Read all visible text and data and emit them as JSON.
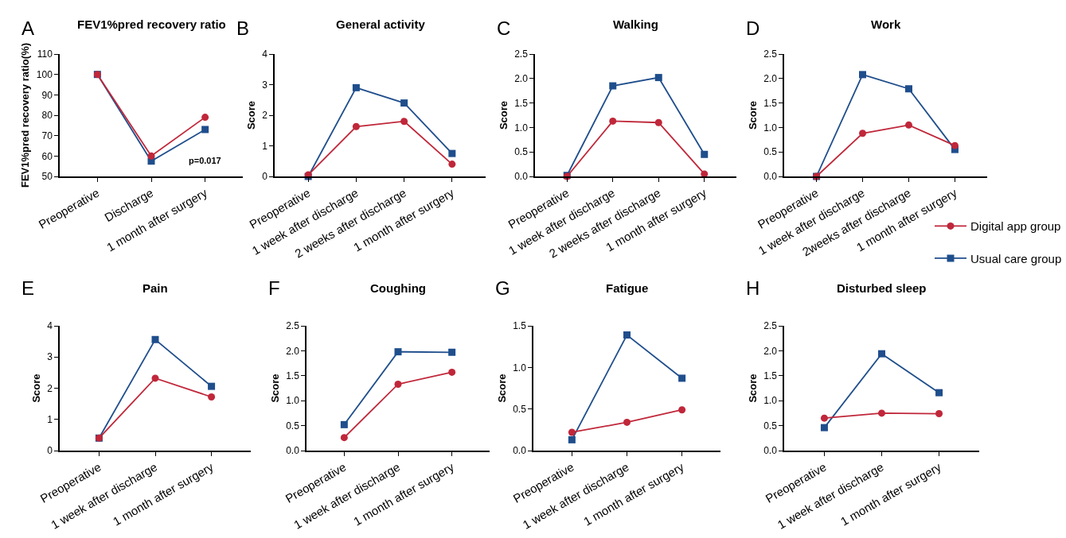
{
  "chart_data": [
    {
      "type": "line",
      "title": "FEV1%pred recovery ratio",
      "ylabel": "FEV1%pred recovery ratio(%)",
      "annotations": [
        "A",
        "p=0.017"
      ],
      "categories": [
        "Preoperative",
        "Discharge",
        "1 month after surgery"
      ],
      "ylim": [
        50,
        110
      ],
      "yticks": [
        50,
        60,
        70,
        80,
        90,
        100,
        110
      ],
      "legend": "right",
      "series": [
        {
          "name": "Digital app group",
          "color": "#c0273a",
          "marker": "circle",
          "values": [
            100,
            60,
            79
          ]
        },
        {
          "name": "Usual care group",
          "color": "#1f4e8c",
          "marker": "square",
          "values": [
            100,
            57.5,
            73
          ]
        }
      ]
    },
    {
      "type": "line",
      "title": "General activity",
      "ylabel": "Score",
      "annotations": [
        "B"
      ],
      "categories": [
        "Preoperative",
        "1 week after discharge",
        "2 weeks after discharge",
        "1 month after surgery"
      ],
      "ylim": [
        0,
        4
      ],
      "yticks": [
        0,
        1,
        2,
        3,
        4
      ],
      "series": [
        {
          "color": "#c0273a",
          "marker": "circle",
          "values": [
            0.05,
            1.63,
            1.8,
            0.4
          ]
        },
        {
          "color": "#1f4e8c",
          "marker": "square",
          "values": [
            0,
            2.9,
            2.4,
            0.75
          ]
        }
      ]
    },
    {
      "type": "line",
      "title": "Walking",
      "ylabel": "Score",
      "annotations": [
        "C"
      ],
      "categories": [
        "Preoperative",
        "1 week after discharge",
        "2 weeks after discharge",
        "1 month after surgery"
      ],
      "ylim": [
        0,
        2.5
      ],
      "yticks": [
        {
          "value": 0,
          "label": "0.0"
        },
        {
          "value": 0.5,
          "label": "0.5"
        },
        {
          "value": 1,
          "label": "1.0"
        },
        {
          "value": 1.5,
          "label": "1.5"
        },
        {
          "value": 2,
          "label": "2.0"
        },
        {
          "value": 2.5,
          "label": "2.5"
        }
      ],
      "series": [
        {
          "color": "#c0273a",
          "marker": "circle",
          "values": [
            0,
            1.13,
            1.1,
            0.05
          ]
        },
        {
          "color": "#1f4e8c",
          "marker": "square",
          "values": [
            0.02,
            1.85,
            2.02,
            0.45
          ]
        }
      ]
    },
    {
      "type": "line",
      "title": "Work",
      "ylabel": "Score",
      "annotations": [
        "D"
      ],
      "categories": [
        "Preoperative",
        "1 week after discharge",
        "2weeks after discharge",
        "1 month after surgery"
      ],
      "ylim": [
        0,
        2.5
      ],
      "yticks": [
        {
          "value": 0,
          "label": "0.0"
        },
        {
          "value": 0.5,
          "label": "0.5"
        },
        {
          "value": 1,
          "label": "1.0"
        },
        {
          "value": 1.5,
          "label": "1.5"
        },
        {
          "value": 2,
          "label": "2.0"
        },
        {
          "value": 2.5,
          "label": "2.5"
        }
      ],
      "series": [
        {
          "color": "#c0273a",
          "marker": "circle",
          "values": [
            0,
            0.88,
            1.05,
            0.63
          ]
        },
        {
          "color": "#1f4e8c",
          "marker": "square",
          "values": [
            0,
            2.08,
            1.79,
            0.55
          ]
        }
      ]
    },
    {
      "type": "line",
      "title": "Pain",
      "ylabel": "Score",
      "annotations": [
        "E"
      ],
      "categories": [
        "Preoperative",
        "1 week after discharge",
        "1 month after surgery"
      ],
      "ylim": [
        0,
        4
      ],
      "yticks": [
        0,
        1,
        2,
        3,
        4
      ],
      "series": [
        {
          "color": "#c0273a",
          "marker": "circle",
          "values": [
            0.4,
            2.32,
            1.72
          ]
        },
        {
          "color": "#1f4e8c",
          "marker": "square",
          "values": [
            0.4,
            3.56,
            2.06
          ]
        }
      ]
    },
    {
      "type": "line",
      "title": "Coughing",
      "ylabel": "Score",
      "annotations": [
        "F"
      ],
      "categories": [
        "Preoperative",
        "1 week after discharge",
        "1 month after surgery"
      ],
      "ylim": [
        0,
        2.5
      ],
      "yticks": [
        {
          "value": 0,
          "label": "0.0"
        },
        {
          "value": 0.5,
          "label": "0.5"
        },
        {
          "value": 1,
          "label": "1.0"
        },
        {
          "value": 1.5,
          "label": "1.5"
        },
        {
          "value": 2,
          "label": "2.0"
        },
        {
          "value": 2.5,
          "label": "2.5"
        }
      ],
      "series": [
        {
          "color": "#c0273a",
          "marker": "circle",
          "values": [
            0.26,
            1.33,
            1.57
          ]
        },
        {
          "color": "#1f4e8c",
          "marker": "square",
          "values": [
            0.52,
            1.98,
            1.97
          ]
        }
      ]
    },
    {
      "type": "line",
      "title": "Fatigue",
      "ylabel": "Score",
      "annotations": [
        "G"
      ],
      "categories": [
        "Preoperative",
        "1 week after discharge",
        "1 month after surgery"
      ],
      "ylim": [
        0,
        1.5
      ],
      "yticks": [
        {
          "value": 0,
          "label": "0.0"
        },
        {
          "value": 0.5,
          "label": "0.5"
        },
        {
          "value": 1,
          "label": "1.0"
        },
        {
          "value": 1.5,
          "label": "1.5"
        }
      ],
      "series": [
        {
          "color": "#c0273a",
          "marker": "circle",
          "values": [
            0.22,
            0.34,
            0.49
          ]
        },
        {
          "color": "#1f4e8c",
          "marker": "square",
          "values": [
            0.13,
            1.39,
            0.87
          ]
        }
      ]
    },
    {
      "type": "line",
      "title": "Disturbed sleep",
      "ylabel": "Score",
      "annotations": [
        "H"
      ],
      "categories": [
        "Preoperative",
        "1 week after discharge",
        "1 month after surgery"
      ],
      "ylim": [
        0,
        2.5
      ],
      "yticks": [
        {
          "value": 0,
          "label": "0.0"
        },
        {
          "value": 0.5,
          "label": "0.5"
        },
        {
          "value": 1,
          "label": "1.0"
        },
        {
          "value": 1.5,
          "label": "1.5"
        },
        {
          "value": 2,
          "label": "2.0"
        },
        {
          "value": 2.5,
          "label": "2.5"
        }
      ],
      "series": [
        {
          "color": "#c0273a",
          "marker": "circle",
          "values": [
            0.65,
            0.75,
            0.74
          ]
        },
        {
          "color": "#1f4e8c",
          "marker": "square",
          "values": [
            0.46,
            1.94,
            1.16
          ]
        }
      ]
    }
  ]
}
